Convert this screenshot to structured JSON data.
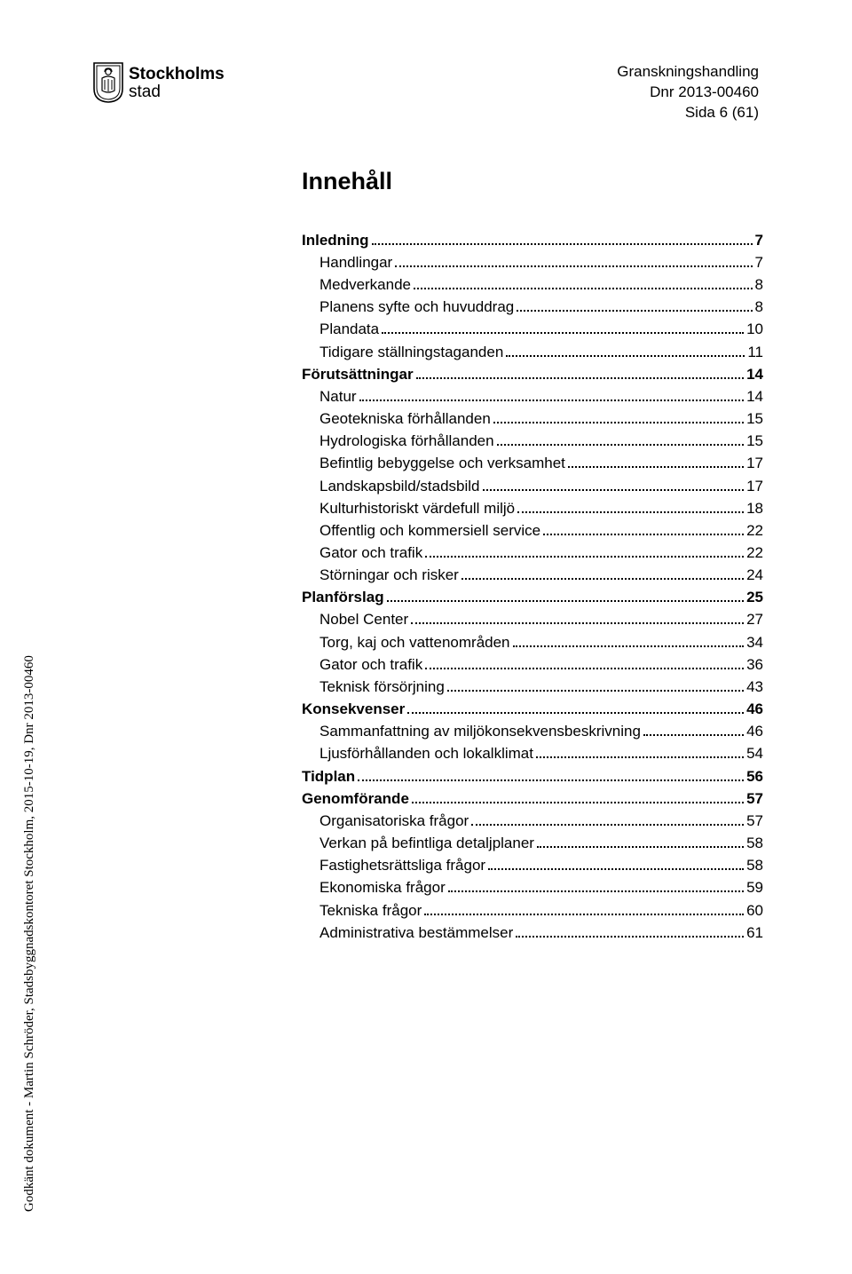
{
  "brand": {
    "line1": "Stockholms",
    "line2": "stad"
  },
  "header": {
    "line1": "Granskningshandling",
    "line2": "Dnr 2013-00460",
    "line3": "Sida 6 (61)"
  },
  "toc_title": "Innehåll",
  "sidetext": "Godkänt dokument - Martin Schröder, Stadsbyggnadskontoret Stockholm, 2015-10-19, Dnr 2013-00460",
  "toc": [
    {
      "label": "Inledning",
      "page": "7",
      "level": 0
    },
    {
      "label": "Handlingar",
      "page": "7",
      "level": 1
    },
    {
      "label": "Medverkande",
      "page": "8",
      "level": 1
    },
    {
      "label": "Planens syfte och huvuddrag",
      "page": "8",
      "level": 1
    },
    {
      "label": "Plandata",
      "page": "10",
      "level": 1
    },
    {
      "label": "Tidigare ställningstaganden",
      "page": "11",
      "level": 1
    },
    {
      "label": "Förutsättningar",
      "page": "14",
      "level": 0
    },
    {
      "label": "Natur",
      "page": "14",
      "level": 1
    },
    {
      "label": "Geotekniska förhållanden",
      "page": "15",
      "level": 1
    },
    {
      "label": "Hydrologiska förhållanden",
      "page": "15",
      "level": 1
    },
    {
      "label": "Befintlig bebyggelse och verksamhet",
      "page": "17",
      "level": 1
    },
    {
      "label": "Landskapsbild/stadsbild",
      "page": "17",
      "level": 1
    },
    {
      "label": "Kulturhistoriskt värdefull miljö",
      "page": "18",
      "level": 1
    },
    {
      "label": "Offentlig och kommersiell service",
      "page": "22",
      "level": 1
    },
    {
      "label": "Gator och trafik",
      "page": "22",
      "level": 1
    },
    {
      "label": "Störningar och risker",
      "page": "24",
      "level": 1
    },
    {
      "label": "Planförslag",
      "page": "25",
      "level": 0
    },
    {
      "label": "Nobel Center",
      "page": "27",
      "level": 1
    },
    {
      "label": "Torg, kaj och vattenområden",
      "page": "34",
      "level": 1
    },
    {
      "label": "Gator och trafik",
      "page": "36",
      "level": 1
    },
    {
      "label": "Teknisk försörjning",
      "page": "43",
      "level": 1
    },
    {
      "label": "Konsekvenser",
      "page": "46",
      "level": 0
    },
    {
      "label": "Sammanfattning av miljökonsekvensbeskrivning",
      "page": "46",
      "level": 1
    },
    {
      "label": "Ljusförhållanden och lokalklimat",
      "page": "54",
      "level": 1
    },
    {
      "label": "Tidplan",
      "page": "56",
      "level": 0
    },
    {
      "label": "Genomförande",
      "page": "57",
      "level": 0
    },
    {
      "label": "Organisatoriska frågor",
      "page": "57",
      "level": 1
    },
    {
      "label": "Verkan på befintliga detaljplaner",
      "page": "58",
      "level": 1
    },
    {
      "label": "Fastighetsrättsliga frågor",
      "page": "58",
      "level": 1
    },
    {
      "label": "Ekonomiska frågor",
      "page": "59",
      "level": 1
    },
    {
      "label": "Tekniska frågor",
      "page": "60",
      "level": 1
    },
    {
      "label": "Administrativa bestämmelser",
      "page": "61",
      "level": 1
    }
  ]
}
